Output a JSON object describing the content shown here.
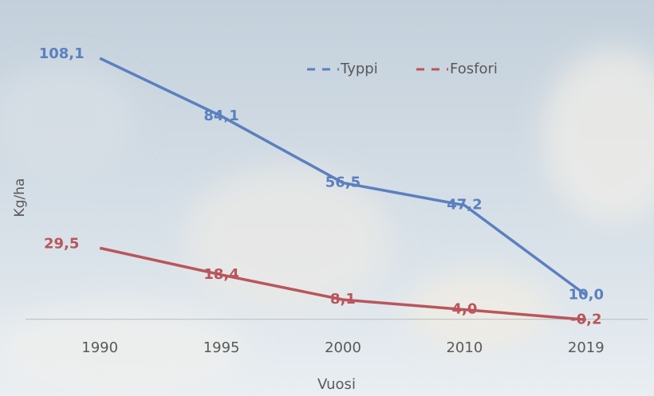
{
  "chart_data": {
    "type": "line",
    "categories": [
      "1990",
      "1995",
      "2000",
      "2010",
      "2019"
    ],
    "series": [
      {
        "name": "Typpi",
        "color": "#5b80c0",
        "values": [
          108.1,
          84.1,
          56.5,
          47.2,
          10.0
        ],
        "value_labels": [
          "108,1",
          "84,1",
          "56,5",
          "47,2",
          "10,0"
        ]
      },
      {
        "name": "Fosfori",
        "color": "#b9565c",
        "values": [
          29.5,
          18.4,
          8.1,
          4.0,
          -0.2
        ],
        "value_labels": [
          "29,5",
          "18,4",
          "8,1",
          "4,0",
          "-0,2"
        ]
      }
    ],
    "xlabel": "Vuosi",
    "ylabel": "Kg/ha",
    "ylim": [
      -10,
      120
    ],
    "legend": "top-right"
  }
}
